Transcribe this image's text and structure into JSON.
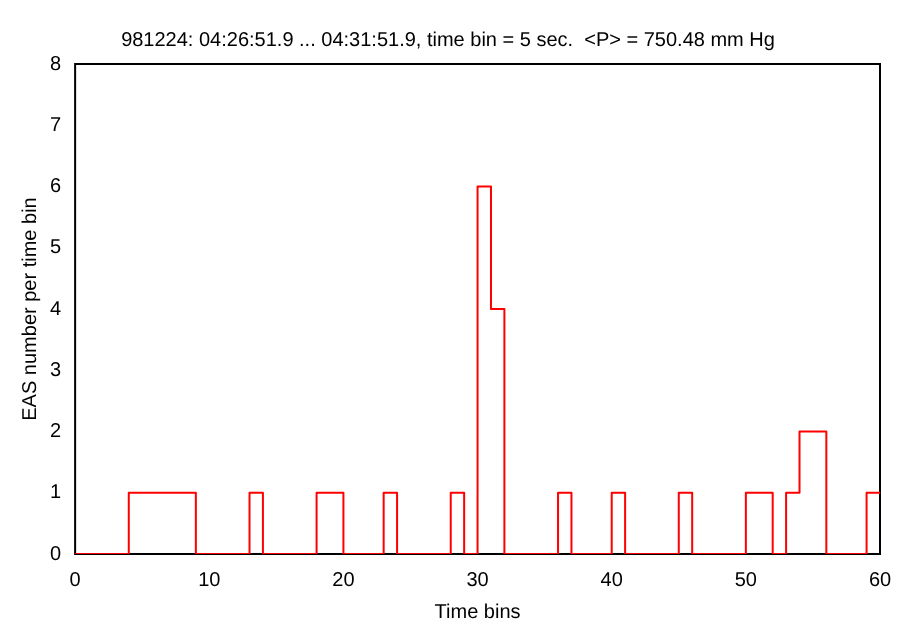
{
  "chart_data": {
    "type": "step",
    "title": "981224: 04:26:51.9 ... 04:31:51.9, time bin = 5 sec.  <P> = 750.48 mm Hg",
    "xlabel": "Time bins",
    "ylabel": "EAS number per time bin",
    "x": [
      0,
      1,
      2,
      3,
      4,
      5,
      6,
      7,
      8,
      9,
      10,
      11,
      12,
      13,
      14,
      15,
      16,
      17,
      18,
      19,
      20,
      21,
      22,
      23,
      24,
      25,
      26,
      27,
      28,
      29,
      30,
      31,
      32,
      33,
      34,
      35,
      36,
      37,
      38,
      39,
      40,
      41,
      42,
      43,
      44,
      45,
      46,
      47,
      48,
      49,
      50,
      51,
      52,
      53,
      54,
      55,
      56,
      57,
      58,
      59,
      60
    ],
    "series": [
      {
        "color": "#ff0000",
        "values": [
          0,
          0,
          0,
          0,
          1,
          1,
          1,
          1,
          1,
          0,
          0,
          0,
          0,
          1,
          0,
          0,
          0,
          0,
          1,
          1,
          0,
          0,
          0,
          1,
          0,
          0,
          0,
          0,
          1,
          0,
          6,
          4,
          0,
          0,
          0,
          0,
          1,
          0,
          0,
          0,
          1,
          0,
          0,
          0,
          0,
          1,
          0,
          0,
          0,
          0,
          1,
          1,
          0,
          1,
          2,
          2,
          0,
          0,
          0,
          1,
          1
        ]
      }
    ],
    "xlim": [
      0,
      60
    ],
    "xticks": [
      0,
      10,
      20,
      30,
      40,
      50,
      60
    ],
    "ylim": [
      0,
      8
    ],
    "yticks": [
      0,
      1,
      2,
      3,
      4,
      5,
      6,
      7,
      8
    ],
    "grid": false,
    "legend": false
  }
}
